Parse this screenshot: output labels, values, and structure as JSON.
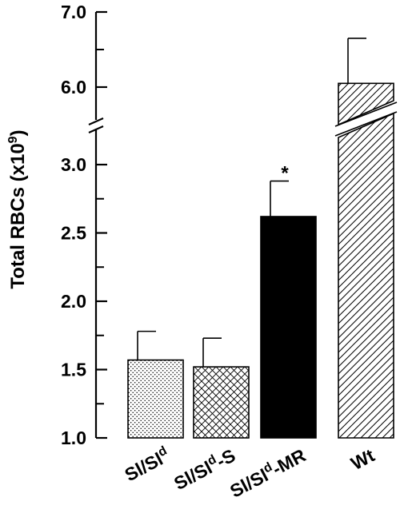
{
  "chart_data": {
    "type": "bar",
    "ylabel": "Total RBCs (x10",
    "ylabel_superscript": "9",
    "ylabel_close": ")",
    "ylim": [
      1.0,
      7.0
    ],
    "axis_break": {
      "lower_max": 3.4,
      "upper_min": 5.6
    },
    "y_ticks": [
      {
        "value": 1.0,
        "label": "1.0"
      },
      {
        "value": 1.5,
        "label": "1.5"
      },
      {
        "value": 2.0,
        "label": "2.0"
      },
      {
        "value": 2.5,
        "label": "2.5"
      },
      {
        "value": 3.0,
        "label": "3.0"
      },
      {
        "value": 6.0,
        "label": "6.0"
      },
      {
        "value": 7.0,
        "label": "7.0"
      }
    ],
    "categories": [
      {
        "base": "Sl/Sl",
        "sup": "d",
        "suffix": ""
      },
      {
        "base": "Sl/Sl",
        "sup": "d",
        "suffix": "-S"
      },
      {
        "base": "Sl/Sl",
        "sup": "d",
        "suffix": "-MR"
      },
      {
        "base": "Wt",
        "sup": "",
        "suffix": ""
      }
    ],
    "values": [
      1.57,
      1.52,
      2.62,
      6.05
    ],
    "errors": [
      0.21,
      0.21,
      0.26,
      0.6
    ],
    "fills": [
      "dots",
      "crosshatch",
      "solid",
      "diagonal"
    ],
    "annotations": [
      {
        "category_index": 2,
        "text": "*"
      }
    ],
    "grid": false,
    "legend": "none"
  }
}
